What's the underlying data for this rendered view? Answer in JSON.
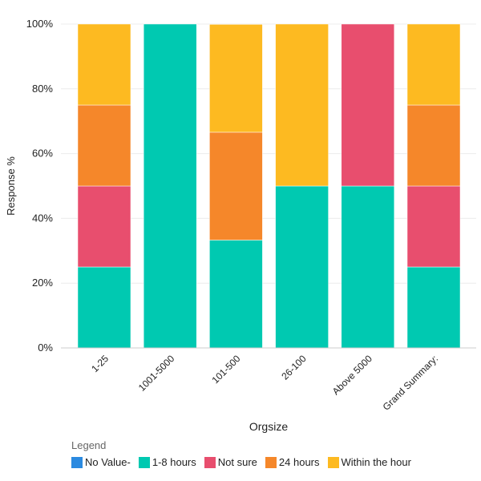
{
  "chart_data": {
    "type": "bar",
    "stacked": true,
    "normalized": true,
    "title": "",
    "xlabel": "Orgsize",
    "ylabel": "Response %",
    "ylim": [
      0,
      100
    ],
    "yticks": [
      "0%",
      "20%",
      "40%",
      "60%",
      "80%",
      "100%"
    ],
    "grid": true,
    "legend_position": "bottom-left",
    "legend_title": "Legend",
    "categories": [
      "1-25",
      "1001-5000",
      "101-500",
      "26-100",
      "Above 5000",
      "Grand Summary:"
    ],
    "series": [
      {
        "name": "No Value-",
        "color": "#2b8ae0",
        "values": [
          0,
          0,
          0,
          0,
          0,
          0
        ]
      },
      {
        "name": "1-8 hours",
        "color": "#00c9b1",
        "values": [
          25,
          100,
          33.3,
          50,
          50,
          25
        ]
      },
      {
        "name": "Not sure",
        "color": "#e84e6e",
        "values": [
          25,
          0,
          0,
          0,
          50,
          25
        ]
      },
      {
        "name": "24 hours",
        "color": "#f5872a",
        "values": [
          25,
          0,
          33.3,
          0,
          0,
          25
        ]
      },
      {
        "name": "Within the hour",
        "color": "#fdba21",
        "values": [
          25,
          0,
          33.3,
          50,
          0,
          25
        ]
      }
    ]
  }
}
